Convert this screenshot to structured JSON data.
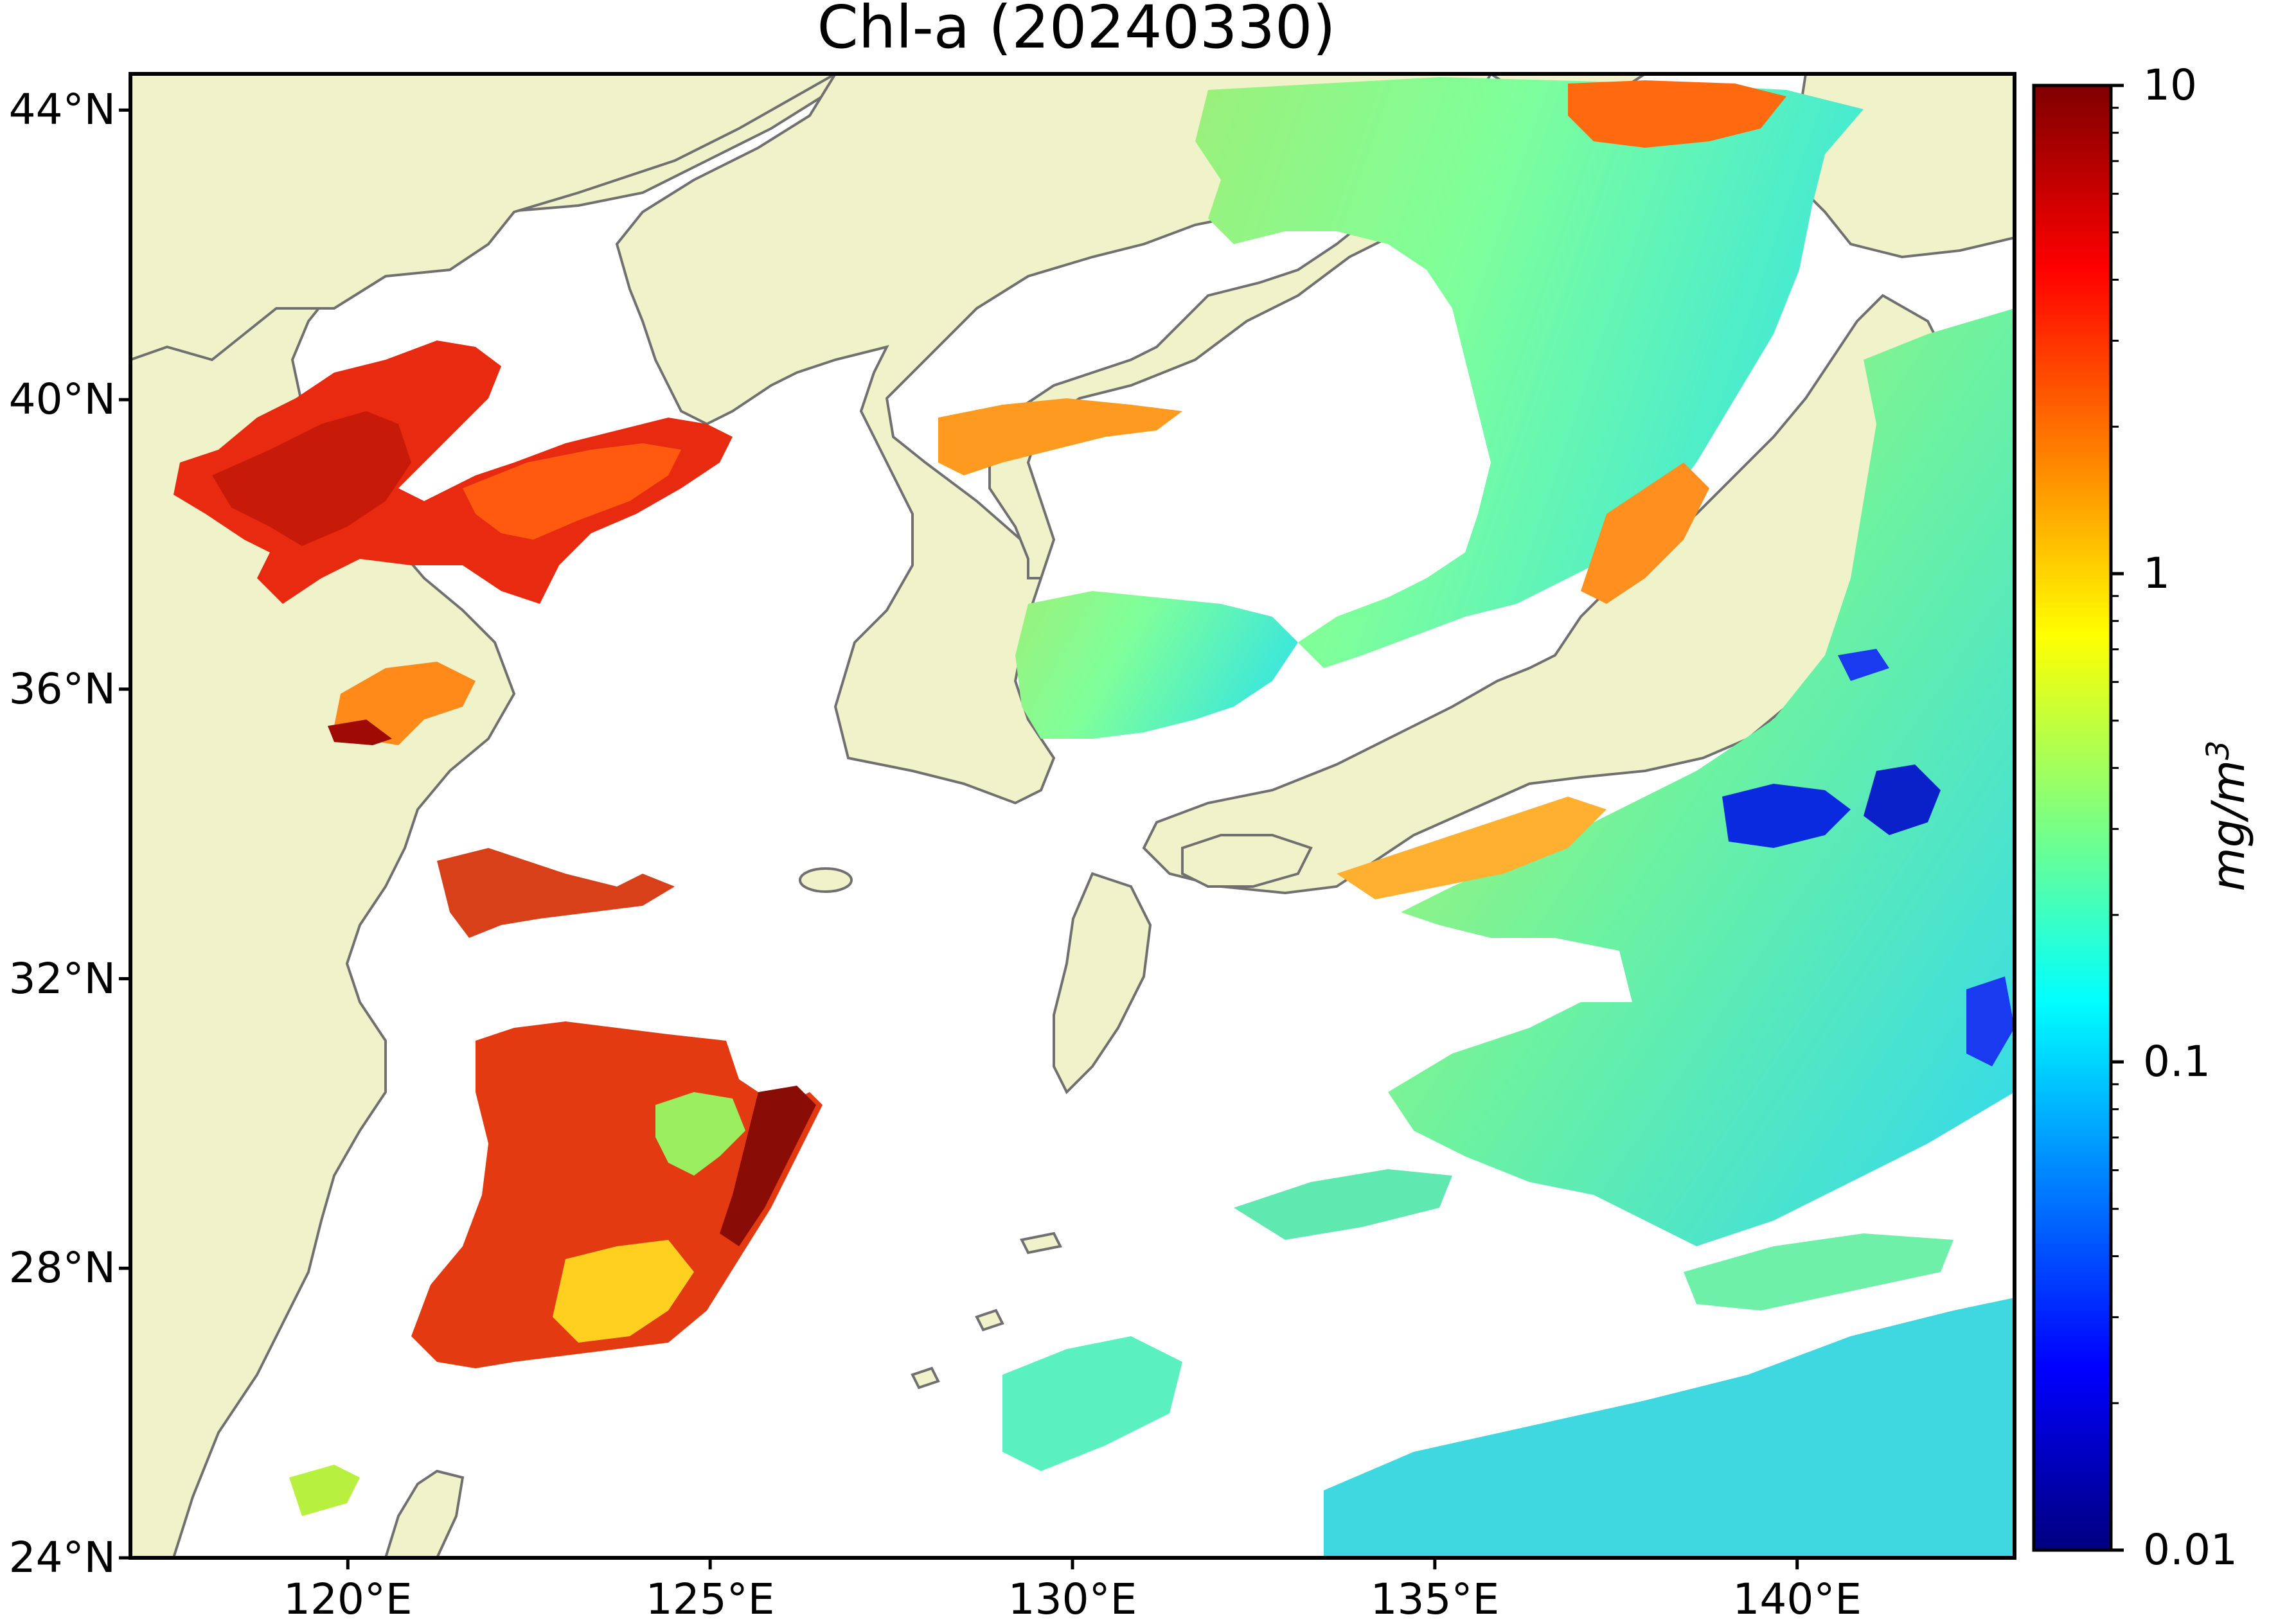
{
  "title": "Chl-a (20240330)",
  "map": {
    "lon_range": [
      117,
      143
    ],
    "lat_range": [
      24,
      44.5
    ],
    "projection": "plate-carree",
    "land_color": "#f0f3c9",
    "ocean_nodata_color": "#ffffff",
    "coastline_color": "#707070",
    "lat_ticks": [
      {
        "value": 44,
        "label": "44°N"
      },
      {
        "value": 40,
        "label": "40°N"
      },
      {
        "value": 36,
        "label": "36°N"
      },
      {
        "value": 32,
        "label": "32°N"
      },
      {
        "value": 28,
        "label": "28°N"
      },
      {
        "value": 24,
        "label": "24°N"
      }
    ],
    "lon_ticks": [
      {
        "value": 120,
        "label": "120°E"
      },
      {
        "value": 125,
        "label": "125°E"
      },
      {
        "value": 130,
        "label": "130°E"
      },
      {
        "value": 135,
        "label": "135°E"
      },
      {
        "value": 140,
        "label": "140°E"
      }
    ]
  },
  "colorbar": {
    "scale": "log",
    "min": 0.01,
    "max": 10,
    "unit": "mg/m",
    "unit_exponent": "3",
    "colormap": "jet",
    "colors": [
      "#00007f",
      "#0000ff",
      "#007fff",
      "#00ffff",
      "#7fff7f",
      "#ffff00",
      "#ff7f00",
      "#ff0000",
      "#7f0000"
    ],
    "major_ticks": [
      {
        "value": 10,
        "label": "10"
      },
      {
        "value": 1,
        "label": "1"
      },
      {
        "value": 0.1,
        "label": "0.1"
      },
      {
        "value": 0.01,
        "label": "0.01"
      }
    ]
  }
}
